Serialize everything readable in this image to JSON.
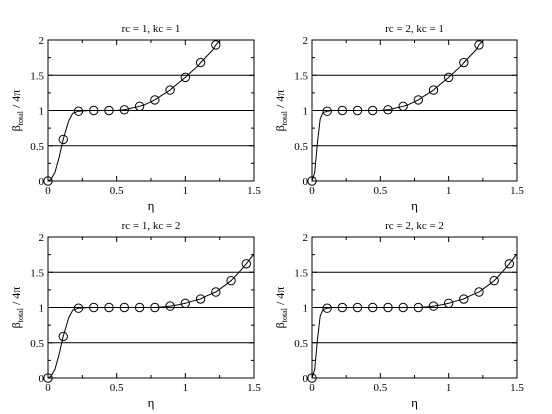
{
  "chart_data": [
    {
      "type": "line",
      "title": "rc = 1, kc = 1",
      "xlabel": "η",
      "ylabel_main": "β",
      "ylabel_sub": "total",
      "ylabel_tail": " / 4π",
      "xlim": [
        0,
        1.5
      ],
      "ylim": [
        0,
        2
      ],
      "xticks": [
        0,
        0.5,
        1,
        1.5
      ],
      "xtick_labels": [
        "0",
        "0.5",
        "1",
        "1.5"
      ],
      "yticks": [
        0,
        0.5,
        1,
        1.5,
        2
      ],
      "ytick_labels": [
        "0",
        "0.5",
        "1",
        "1.5",
        "2"
      ],
      "hlines": [
        0.5,
        1,
        1.5
      ],
      "series": [
        {
          "marker": "circle",
          "x": [
            0.0,
            0.111,
            0.222,
            0.333,
            0.444,
            0.556,
            0.667,
            0.778,
            0.889,
            1.0,
            1.111,
            1.222
          ],
          "y": [
            0.0,
            0.59,
            0.99,
            1.0,
            1.0,
            1.01,
            1.06,
            1.15,
            1.29,
            1.47,
            1.68,
            1.93
          ]
        }
      ],
      "curve": {
        "x": [
          0.0,
          0.02,
          0.05,
          0.08,
          0.111,
          0.15,
          0.18,
          0.222,
          0.3,
          0.4,
          0.5,
          0.556,
          0.6,
          0.667,
          0.7,
          0.778,
          0.8,
          0.889,
          0.9,
          1.0,
          1.1,
          1.111,
          1.2,
          1.222,
          1.25
        ],
        "y": [
          0.0,
          0.02,
          0.12,
          0.33,
          0.59,
          0.85,
          0.96,
          0.99,
          1.0,
          1.0,
          1.0,
          1.01,
          1.03,
          1.06,
          1.08,
          1.15,
          1.18,
          1.29,
          1.31,
          1.47,
          1.65,
          1.68,
          1.86,
          1.93,
          1.99
        ]
      }
    },
    {
      "type": "line",
      "title": "rc = 2, kc = 1",
      "xlabel": "η",
      "ylabel_main": "β",
      "ylabel_sub": "total",
      "ylabel_tail": " / 4π",
      "xlim": [
        0,
        1.5
      ],
      "ylim": [
        0,
        2
      ],
      "xticks": [
        0,
        0.5,
        1,
        1.5
      ],
      "xtick_labels": [
        "0",
        "0.5",
        "1",
        "1.5"
      ],
      "yticks": [
        0,
        0.5,
        1,
        1.5,
        2
      ],
      "ytick_labels": [
        "0",
        "0.5",
        "1",
        "1.5",
        "2"
      ],
      "hlines": [
        0.5,
        1,
        1.5
      ],
      "series": [
        {
          "marker": "circle",
          "x": [
            0.0,
            0.111,
            0.222,
            0.333,
            0.444,
            0.556,
            0.667,
            0.778,
            0.889,
            1.0,
            1.111,
            1.222
          ],
          "y": [
            0.0,
            0.99,
            1.0,
            1.0,
            1.0,
            1.01,
            1.06,
            1.15,
            1.29,
            1.47,
            1.68,
            1.93
          ]
        }
      ],
      "curve": {
        "x": [
          0.0,
          0.02,
          0.04,
          0.06,
          0.08,
          0.111,
          0.15,
          0.222,
          0.3,
          0.4,
          0.5,
          0.556,
          0.6,
          0.667,
          0.7,
          0.778,
          0.8,
          0.889,
          0.9,
          1.0,
          1.1,
          1.111,
          1.2,
          1.222,
          1.25
        ],
        "y": [
          0.0,
          0.12,
          0.55,
          0.88,
          0.97,
          0.99,
          1.0,
          1.0,
          1.0,
          1.0,
          1.0,
          1.01,
          1.03,
          1.06,
          1.08,
          1.15,
          1.18,
          1.29,
          1.31,
          1.47,
          1.65,
          1.68,
          1.86,
          1.93,
          1.99
        ]
      }
    },
    {
      "type": "line",
      "title": "rc = 1, kc = 2",
      "xlabel": "η",
      "ylabel_main": "β",
      "ylabel_sub": "total",
      "ylabel_tail": " / 4π",
      "xlim": [
        0,
        1.5
      ],
      "ylim": [
        0,
        2
      ],
      "xticks": [
        0,
        0.5,
        1,
        1.5
      ],
      "xtick_labels": [
        "0",
        "0.5",
        "1",
        "1.5"
      ],
      "yticks": [
        0,
        0.5,
        1,
        1.5,
        2
      ],
      "ytick_labels": [
        "0",
        "0.5",
        "1",
        "1.5",
        "2"
      ],
      "hlines": [
        0.5,
        1,
        1.5
      ],
      "series": [
        {
          "marker": "circle",
          "x": [
            0.0,
            0.111,
            0.222,
            0.333,
            0.444,
            0.556,
            0.667,
            0.778,
            0.889,
            1.0,
            1.111,
            1.222,
            1.333,
            1.444
          ],
          "y": [
            0.0,
            0.59,
            0.99,
            1.0,
            1.0,
            1.0,
            1.0,
            1.0,
            1.02,
            1.06,
            1.12,
            1.22,
            1.38,
            1.62
          ]
        }
      ],
      "curve": {
        "x": [
          0.0,
          0.02,
          0.05,
          0.08,
          0.111,
          0.15,
          0.18,
          0.222,
          0.3,
          0.4,
          0.5,
          0.6,
          0.7,
          0.778,
          0.85,
          0.889,
          0.95,
          1.0,
          1.05,
          1.111,
          1.15,
          1.222,
          1.3,
          1.333,
          1.4,
          1.444,
          1.5
        ],
        "y": [
          0.0,
          0.02,
          0.12,
          0.33,
          0.59,
          0.85,
          0.96,
          0.99,
          1.0,
          1.0,
          1.0,
          1.0,
          1.0,
          1.0,
          1.01,
          1.02,
          1.04,
          1.06,
          1.09,
          1.12,
          1.16,
          1.22,
          1.33,
          1.38,
          1.52,
          1.62,
          1.76
        ]
      }
    },
    {
      "type": "line",
      "title": "rc = 2, kc = 2",
      "xlabel": "η",
      "ylabel_main": "β",
      "ylabel_sub": "total",
      "ylabel_tail": " / 4π",
      "xlim": [
        0,
        1.5
      ],
      "ylim": [
        0,
        2
      ],
      "xticks": [
        0,
        0.5,
        1,
        1.5
      ],
      "xtick_labels": [
        "0",
        "0.5",
        "1",
        "1.5"
      ],
      "yticks": [
        0,
        0.5,
        1,
        1.5,
        2
      ],
      "ytick_labels": [
        "0",
        "0.5",
        "1",
        "1.5",
        "2"
      ],
      "hlines": [
        0.5,
        1,
        1.5
      ],
      "series": [
        {
          "marker": "circle",
          "x": [
            0.0,
            0.111,
            0.222,
            0.333,
            0.444,
            0.556,
            0.667,
            0.778,
            0.889,
            1.0,
            1.111,
            1.222,
            1.333,
            1.444
          ],
          "y": [
            0.0,
            0.99,
            1.0,
            1.0,
            1.0,
            1.0,
            1.0,
            1.0,
            1.02,
            1.06,
            1.12,
            1.22,
            1.38,
            1.62
          ]
        }
      ],
      "curve": {
        "x": [
          0.0,
          0.02,
          0.04,
          0.06,
          0.08,
          0.111,
          0.15,
          0.222,
          0.3,
          0.4,
          0.5,
          0.6,
          0.7,
          0.778,
          0.85,
          0.889,
          0.95,
          1.0,
          1.05,
          1.111,
          1.15,
          1.222,
          1.3,
          1.333,
          1.4,
          1.444,
          1.5
        ],
        "y": [
          0.0,
          0.12,
          0.55,
          0.88,
          0.97,
          0.99,
          1.0,
          1.0,
          1.0,
          1.0,
          1.0,
          1.0,
          1.0,
          1.0,
          1.01,
          1.02,
          1.04,
          1.06,
          1.09,
          1.12,
          1.16,
          1.22,
          1.33,
          1.38,
          1.52,
          1.62,
          1.76
        ]
      }
    }
  ]
}
